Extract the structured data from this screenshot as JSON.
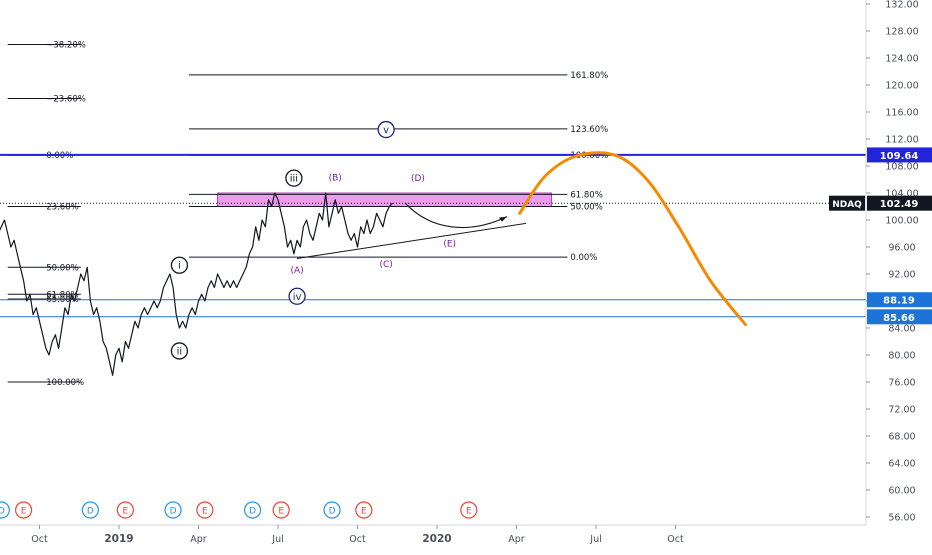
{
  "chart_data": {
    "type": "line",
    "symbol": "NDAQ",
    "last_price": "102.49",
    "y_axis": {
      "min": 54,
      "max": 134,
      "ticks": [
        "56.00",
        "60.00",
        "64.00",
        "68.00",
        "72.00",
        "76.00",
        "80.00",
        "84.00",
        "88.00",
        "92.00",
        "96.00",
        "100.00",
        "104.00",
        "108.00",
        "112.00",
        "116.00",
        "120.00",
        "124.00",
        "128.00",
        "132.00"
      ]
    },
    "x_axis": {
      "ticks": [
        {
          "label": "Oct",
          "x": 2018.75
        },
        {
          "label": "2019",
          "x": 2019.0
        },
        {
          "label": "Apr",
          "x": 2019.25
        },
        {
          "label": "Jul",
          "x": 2019.5
        },
        {
          "label": "Oct",
          "x": 2019.75
        },
        {
          "label": "2020",
          "x": 2020.0
        },
        {
          "label": "Apr",
          "x": 2020.25
        },
        {
          "label": "Jul",
          "x": 2020.5
        },
        {
          "label": "Oct",
          "x": 2020.75
        }
      ]
    },
    "price_series": [
      [
        2018.62,
        98
      ],
      [
        2018.63,
        99
      ],
      [
        2018.64,
        100
      ],
      [
        2018.65,
        98
      ],
      [
        2018.66,
        96
      ],
      [
        2018.67,
        97
      ],
      [
        2018.68,
        95
      ],
      [
        2018.69,
        93
      ],
      [
        2018.7,
        91
      ],
      [
        2018.71,
        88
      ],
      [
        2018.72,
        89
      ],
      [
        2018.73,
        86
      ],
      [
        2018.74,
        87
      ],
      [
        2018.75,
        85
      ],
      [
        2018.76,
        83
      ],
      [
        2018.77,
        81
      ],
      [
        2018.78,
        80
      ],
      [
        2018.79,
        82
      ],
      [
        2018.8,
        83
      ],
      [
        2018.81,
        81
      ],
      [
        2018.82,
        84
      ],
      [
        2018.83,
        87
      ],
      [
        2018.84,
        86
      ],
      [
        2018.85,
        89
      ],
      [
        2018.86,
        88
      ],
      [
        2018.87,
        90
      ],
      [
        2018.88,
        92
      ],
      [
        2018.89,
        91
      ],
      [
        2018.9,
        93
      ],
      [
        2018.91,
        88
      ],
      [
        2018.92,
        86
      ],
      [
        2018.93,
        87
      ],
      [
        2018.94,
        85
      ],
      [
        2018.95,
        82
      ],
      [
        2018.96,
        81
      ],
      [
        2018.97,
        79
      ],
      [
        2018.98,
        77
      ],
      [
        2018.99,
        80
      ],
      [
        2019.0,
        81
      ],
      [
        2019.01,
        79
      ],
      [
        2019.02,
        82
      ],
      [
        2019.03,
        81
      ],
      [
        2019.04,
        83
      ],
      [
        2019.05,
        85
      ],
      [
        2019.06,
        84
      ],
      [
        2019.07,
        86
      ],
      [
        2019.08,
        87
      ],
      [
        2019.09,
        86
      ],
      [
        2019.1,
        87
      ],
      [
        2019.11,
        88
      ],
      [
        2019.12,
        87
      ],
      [
        2019.13,
        88
      ],
      [
        2019.14,
        90
      ],
      [
        2019.15,
        91
      ],
      [
        2019.16,
        92
      ],
      [
        2019.17,
        90
      ],
      [
        2019.18,
        86
      ],
      [
        2019.19,
        84
      ],
      [
        2019.2,
        85
      ],
      [
        2019.21,
        84
      ],
      [
        2019.22,
        86
      ],
      [
        2019.23,
        87
      ],
      [
        2019.24,
        86
      ],
      [
        2019.25,
        88
      ],
      [
        2019.26,
        89
      ],
      [
        2019.27,
        88
      ],
      [
        2019.28,
        90
      ],
      [
        2019.29,
        91
      ],
      [
        2019.3,
        90
      ],
      [
        2019.31,
        92
      ],
      [
        2019.32,
        91
      ],
      [
        2019.33,
        90
      ],
      [
        2019.34,
        91
      ],
      [
        2019.35,
        90
      ],
      [
        2019.36,
        91
      ],
      [
        2019.37,
        90
      ],
      [
        2019.38,
        91
      ],
      [
        2019.39,
        92
      ],
      [
        2019.4,
        93
      ],
      [
        2019.41,
        95
      ],
      [
        2019.42,
        96
      ],
      [
        2019.43,
        99
      ],
      [
        2019.44,
        97
      ],
      [
        2019.45,
        100
      ],
      [
        2019.46,
        99
      ],
      [
        2019.47,
        103
      ],
      [
        2019.48,
        102
      ],
      [
        2019.49,
        104
      ],
      [
        2019.5,
        103
      ],
      [
        2019.51,
        101
      ],
      [
        2019.52,
        99
      ],
      [
        2019.53,
        96
      ],
      [
        2019.54,
        97
      ],
      [
        2019.55,
        95
      ],
      [
        2019.56,
        97
      ],
      [
        2019.57,
        96
      ],
      [
        2019.58,
        99
      ],
      [
        2019.59,
        100
      ],
      [
        2019.6,
        98
      ],
      [
        2019.61,
        97
      ],
      [
        2019.62,
        99
      ],
      [
        2019.63,
        101
      ],
      [
        2019.64,
        100
      ],
      [
        2019.65,
        104
      ],
      [
        2019.66,
        99
      ],
      [
        2019.67,
        101
      ],
      [
        2019.68,
        103
      ],
      [
        2019.69,
        101
      ],
      [
        2019.7,
        102
      ],
      [
        2019.71,
        100
      ],
      [
        2019.72,
        98
      ],
      [
        2019.73,
        97
      ],
      [
        2019.74,
        98
      ],
      [
        2019.75,
        96
      ],
      [
        2019.76,
        99
      ],
      [
        2019.77,
        98
      ],
      [
        2019.78,
        100
      ],
      [
        2019.79,
        98
      ],
      [
        2019.8,
        99
      ],
      [
        2019.81,
        101
      ],
      [
        2019.82,
        100
      ],
      [
        2019.83,
        99
      ],
      [
        2019.84,
        101
      ],
      [
        2019.85,
        102
      ],
      [
        2019.86,
        102.49
      ]
    ],
    "price_colors": {
      "line": "#131722",
      "last_price_box": "#131722",
      "last_price_text": "#ffffff"
    },
    "horizontal_levels": [
      {
        "value": 109.64,
        "label": "109.64",
        "color": "#2323d9",
        "width": 2
      },
      {
        "value": 88.19,
        "label": "88.19",
        "color": "#1e73d6",
        "width": 1
      },
      {
        "value": 85.66,
        "label": "85.66",
        "color": "#1e73d6",
        "width": 1
      }
    ],
    "supply_zone": {
      "x_from": 2019.31,
      "x_to": 2020.36,
      "y_from": 102.0,
      "y_to": 104.0,
      "color": "#e88be8",
      "border": "#b83ab8"
    },
    "fib_sets": [
      {
        "name": "left",
        "x_from": 2018.65,
        "x_to": 2018.88,
        "levels": [
          {
            "value": 126.0,
            "label": "−38.20%"
          },
          {
            "value": 118.0,
            "label": "−23.60%"
          },
          {
            "value": 109.6,
            "label": "0.00%"
          },
          {
            "value": 102.0,
            "label": "23.60%"
          }
        ]
      },
      {
        "name": "left-lower",
        "x_from": 2018.65,
        "x_to": 2018.88,
        "levels": [
          {
            "value": 93.0,
            "label": "50.00%"
          },
          {
            "value": 89.0,
            "label": "61.80%"
          },
          {
            "value": 88.3,
            "label": "65.00%"
          },
          {
            "value": 76.0,
            "label": "100.00%"
          }
        ]
      },
      {
        "name": "right",
        "x_from": 2019.22,
        "x_to": 2020.41,
        "levels": [
          {
            "value": 121.5,
            "label": "161.80%"
          },
          {
            "value": 113.5,
            "label": "123.60%"
          },
          {
            "value": 109.6,
            "label": "100.00%"
          },
          {
            "value": 103.8,
            "label": "61.80%"
          },
          {
            "value": 102.0,
            "label": "50.00%"
          },
          {
            "value": 94.5,
            "label": "0.00%"
          }
        ]
      }
    ],
    "wave_labels": [
      {
        "text": "iii",
        "x": 2019.55,
        "y": 106.2,
        "circled": true,
        "color": "#131722"
      },
      {
        "text": "i",
        "x": 2019.19,
        "y": 93.3,
        "circled": true,
        "color": "#131722"
      },
      {
        "text": "ii",
        "x": 2019.19,
        "y": 80.6,
        "circled": true,
        "color": "#131722"
      },
      {
        "text": "iv",
        "x": 2019.56,
        "y": 88.7,
        "circled": true,
        "color": "#1a237e"
      },
      {
        "text": "v",
        "x": 2019.84,
        "y": 113.4,
        "circled": true,
        "color": "#1a237e"
      },
      {
        "text": "(A)",
        "x": 2019.56,
        "y": 92.6,
        "circled": false,
        "color": "#7b1fa2"
      },
      {
        "text": "(B)",
        "x": 2019.68,
        "y": 106.3,
        "circled": false,
        "color": "#7b1fa2"
      },
      {
        "text": "(C)",
        "x": 2019.84,
        "y": 93.5,
        "circled": false,
        "color": "#7b1fa2"
      },
      {
        "text": "(D)",
        "x": 2019.94,
        "y": 106.2,
        "circled": false,
        "color": "#7b1fa2"
      },
      {
        "text": "(E)",
        "x": 2020.04,
        "y": 96.5,
        "circled": false,
        "color": "#7b1fa2"
      }
    ],
    "events": [
      {
        "x": 2018.63,
        "label": "D",
        "type": "dividend"
      },
      {
        "x": 2018.7,
        "label": "E",
        "type": "earnings"
      },
      {
        "x": 2018.91,
        "label": "D",
        "type": "dividend"
      },
      {
        "x": 2019.02,
        "label": "E",
        "type": "earnings"
      },
      {
        "x": 2019.17,
        "label": "D",
        "type": "dividend"
      },
      {
        "x": 2019.27,
        "label": "E",
        "type": "earnings"
      },
      {
        "x": 2019.42,
        "label": "D",
        "type": "dividend"
      },
      {
        "x": 2019.51,
        "label": "E",
        "type": "earnings"
      },
      {
        "x": 2019.67,
        "label": "D",
        "type": "dividend"
      },
      {
        "x": 2019.77,
        "label": "E",
        "type": "earnings"
      },
      {
        "x": 2020.1,
        "label": "E",
        "type": "earnings"
      }
    ],
    "projection": {
      "color": "#f58a00",
      "points": [
        [
          2020.26,
          101
        ],
        [
          2020.34,
          106.5
        ],
        [
          2020.44,
          109.5
        ],
        [
          2020.56,
          109.6
        ],
        [
          2020.66,
          106
        ],
        [
          2020.76,
          99
        ],
        [
          2020.86,
          91
        ],
        [
          2020.97,
          84.5
        ]
      ]
    },
    "triangle_line": {
      "from": [
        2019.56,
        94.3
      ],
      "to": [
        2020.28,
        99.5
      ]
    },
    "curve_arrow": {
      "points": [
        [
          2019.9,
          102.5
        ],
        [
          2019.98,
          98.5
        ],
        [
          2020.1,
          97.8
        ],
        [
          2020.22,
          100.5
        ]
      ]
    }
  }
}
